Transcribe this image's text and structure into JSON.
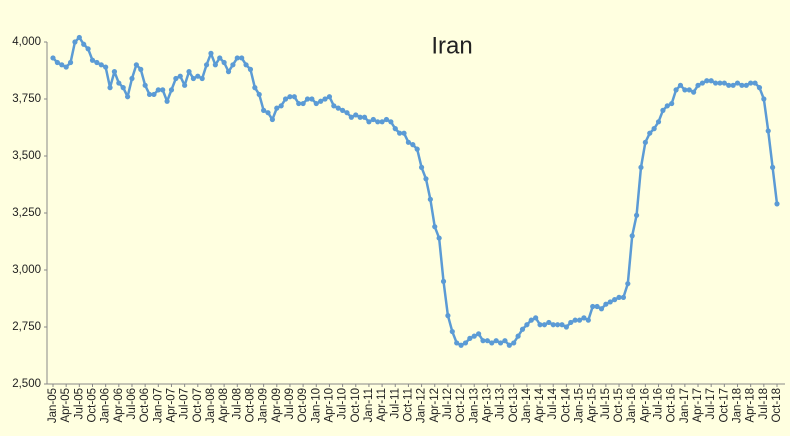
{
  "chart_data": {
    "type": "line",
    "title": "Iran",
    "categories": [
      "Jan-05",
      null,
      null,
      "Apr-05",
      null,
      null,
      "Jul-05",
      null,
      null,
      "Oct-05",
      null,
      null,
      "Jan-06",
      null,
      null,
      "Apr-06",
      null,
      null,
      "Jul-06",
      null,
      null,
      "Oct-06",
      null,
      null,
      "Jan-07",
      null,
      null,
      "Apr-07",
      null,
      null,
      "Jul-07",
      null,
      null,
      "Oct-07",
      null,
      null,
      "Jan-08",
      null,
      null,
      "Apr-08",
      null,
      null,
      "Jul-08",
      null,
      null,
      "Oct-08",
      null,
      null,
      "Jan-09",
      null,
      null,
      "Apr-09",
      null,
      null,
      "Jul-09",
      null,
      null,
      "Oct-09",
      null,
      null,
      "Jan-10",
      null,
      null,
      "Apr-10",
      null,
      null,
      "Jul-10",
      null,
      null,
      "Oct-10",
      null,
      null,
      "Jan-11",
      null,
      null,
      "Apr-11",
      null,
      null,
      "Jul-11",
      null,
      null,
      "Oct-11",
      null,
      null,
      "Jan-12",
      null,
      null,
      "Apr-12",
      null,
      null,
      "Jul-12",
      null,
      null,
      "Oct-12",
      null,
      null,
      "Jan-13",
      null,
      null,
      "Apr-13",
      null,
      null,
      "Jul-13",
      null,
      null,
      "Oct-13",
      null,
      null,
      "Jan-14",
      null,
      null,
      "Apr-14",
      null,
      null,
      "Jul-14",
      null,
      null,
      "Oct-14",
      null,
      null,
      "Jan-15",
      null,
      null,
      "Apr-15",
      null,
      null,
      "Jul-15",
      null,
      null,
      "Oct-15",
      null,
      null,
      "Jan-16",
      null,
      null,
      "Apr-16",
      null,
      null,
      "Jul-16",
      null,
      null,
      "Oct-16",
      null,
      null,
      "Jan-17",
      null,
      null,
      "Apr-17",
      null,
      null,
      "Jul-17",
      null,
      null,
      "Oct-17",
      null,
      null,
      "Jan-18",
      null,
      null,
      "Apr-18",
      null,
      null,
      "Jul-18",
      null,
      null,
      "Oct-18"
    ],
    "values": [
      3930,
      3910,
      3900,
      3890,
      3910,
      4000,
      4020,
      3990,
      3970,
      3920,
      3910,
      3900,
      3890,
      3800,
      3870,
      3820,
      3800,
      3760,
      3840,
      3900,
      3880,
      3810,
      3770,
      3770,
      3790,
      3790,
      3740,
      3790,
      3840,
      3850,
      3810,
      3870,
      3840,
      3850,
      3840,
      3900,
      3950,
      3900,
      3930,
      3910,
      3870,
      3900,
      3930,
      3930,
      3900,
      3880,
      3800,
      3770,
      3700,
      3690,
      3660,
      3710,
      3720,
      3750,
      3760,
      3760,
      3730,
      3730,
      3750,
      3750,
      3730,
      3740,
      3750,
      3760,
      3720,
      3710,
      3700,
      3690,
      3670,
      3680,
      3670,
      3670,
      3650,
      3660,
      3650,
      3650,
      3660,
      3650,
      3620,
      3600,
      3600,
      3560,
      3550,
      3530,
      3450,
      3400,
      3310,
      3190,
      3140,
      2950,
      2800,
      2730,
      2680,
      2670,
      2680,
      2700,
      2710,
      2720,
      2690,
      2690,
      2680,
      2690,
      2680,
      2690,
      2670,
      2680,
      2710,
      2740,
      2760,
      2780,
      2790,
      2760,
      2760,
      2770,
      2760,
      2760,
      2760,
      2750,
      2770,
      2780,
      2780,
      2790,
      2780,
      2840,
      2840,
      2830,
      2850,
      2860,
      2870,
      2880,
      2880,
      2940,
      3150,
      3240,
      3450,
      3560,
      3600,
      3620,
      3650,
      3700,
      3720,
      3730,
      3790,
      3810,
      3790,
      3790,
      3780,
      3810,
      3820,
      3830,
      3830,
      3820,
      3820,
      3820,
      3810,
      3810,
      3820,
      3810,
      3810,
      3820,
      3820,
      3800,
      3750,
      3610,
      3450,
      3290
    ],
    "color": "#5b9bd5",
    "ylim": [
      2500,
      4000
    ],
    "yticks": [
      {
        "value": 2500,
        "label": "2,500"
      },
      {
        "value": 2750,
        "label": "2,750"
      },
      {
        "value": 3000,
        "label": "3,000"
      },
      {
        "value": 3250,
        "label": "3,250"
      },
      {
        "value": 3500,
        "label": "3,500"
      },
      {
        "value": 3750,
        "label": "3,750"
      },
      {
        "value": 4000,
        "label": "4,000"
      }
    ],
    "grid": false
  }
}
